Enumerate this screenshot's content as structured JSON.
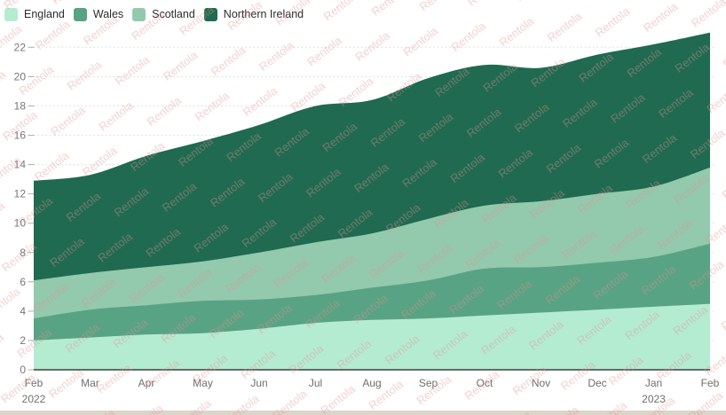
{
  "watermark": {
    "text": "Rentola",
    "color": "#df9191"
  },
  "colors": {
    "background": "#ffffff",
    "axis_line": "#3f3f3f",
    "gridline": "#d9d9d9",
    "tick": "#adadad",
    "axis_label": "#767676",
    "legend_text": "#2c2c2c",
    "bottom_border": "#cfc7b8"
  },
  "legend": {
    "items": [
      {
        "label": "England",
        "color": "#b4ecd2"
      },
      {
        "label": "Wales",
        "color": "#58a383"
      },
      {
        "label": "Scotland",
        "color": "#93c9ad"
      },
      {
        "label": "Northern Ireland",
        "color": "#1f6a51"
      }
    ]
  },
  "chart_data": {
    "type": "area",
    "stacked": true,
    "title": "",
    "xlabel": "",
    "ylabel": "",
    "legend_position": "top-left",
    "grid": "horizontal-dotted",
    "x_labels": [
      {
        "month": "Feb",
        "year": "2022"
      },
      {
        "month": "Mar"
      },
      {
        "month": "Apr"
      },
      {
        "month": "May"
      },
      {
        "month": "Jun"
      },
      {
        "month": "Jul"
      },
      {
        "month": "Aug"
      },
      {
        "month": "Sep"
      },
      {
        "month": "Oct"
      },
      {
        "month": "Nov"
      },
      {
        "month": "Dec"
      },
      {
        "month": "Jan",
        "year": "2023"
      },
      {
        "month": "Feb"
      }
    ],
    "series": [
      {
        "name": "England",
        "color": "#b4ecd2",
        "values": [
          2.0,
          2.2,
          2.4,
          2.5,
          2.8,
          3.2,
          3.4,
          3.5,
          3.7,
          3.9,
          4.1,
          4.3,
          4.5
        ]
      },
      {
        "name": "Wales",
        "color": "#58a383",
        "values": [
          1.5,
          1.9,
          2.0,
          2.2,
          2.0,
          1.9,
          2.2,
          2.6,
          3.2,
          3.1,
          3.2,
          3.4,
          4.1
        ]
      },
      {
        "name": "Scotland",
        "color": "#93c9ad",
        "values": [
          2.6,
          2.5,
          2.6,
          2.7,
          3.2,
          3.6,
          3.7,
          4.2,
          4.3,
          4.5,
          4.7,
          4.8,
          5.2
        ]
      },
      {
        "name": "Northern Ireland",
        "color": "#1f6a51",
        "values": [
          6.8,
          6.7,
          7.6,
          8.2,
          8.7,
          9.3,
          9.1,
          9.6,
          9.6,
          9.1,
          9.5,
          9.7,
          9.2
        ]
      }
    ],
    "stacked_totals": [
      12.9,
      13.3,
      14.6,
      15.6,
      16.7,
      18.0,
      18.4,
      19.9,
      20.8,
      20.6,
      21.5,
      22.2,
      23.0
    ],
    "yticks": [
      0,
      2,
      4,
      6,
      8,
      10,
      12,
      14,
      16,
      18,
      20,
      22
    ],
    "ylim": [
      0,
      23.5
    ]
  }
}
